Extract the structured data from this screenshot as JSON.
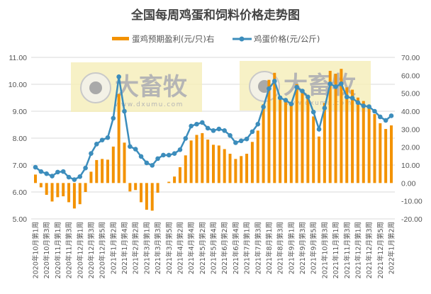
{
  "chart_data": {
    "type": "bar+line",
    "title": "全国每周鸡蛋和饲料价格走势图",
    "legend_position": "top",
    "grid": true,
    "watermark": {
      "logo_text": "大畜牧",
      "url_text": "www.dxumu.com"
    },
    "y_left": {
      "range": [
        5,
        11
      ],
      "ticks": [
        "5.00",
        "6.00",
        "7.00",
        "8.00",
        "9.00",
        "10.00",
        "11.00"
      ]
    },
    "y_right": {
      "range": [
        -20,
        70
      ],
      "ticks": [
        "-20.00",
        "-10.00",
        "0.00",
        "10.00",
        "20.00",
        "30.00",
        "40.00",
        "50.00",
        "60.00",
        "70.00"
      ]
    },
    "x_tick_labels": [
      "2020年10月第1周",
      "2020年10月第3周",
      "2020年11月第1周",
      "2020年11月第3周",
      "2020年12月第1周",
      "2020年12月第3周",
      "2020年12月第5周",
      "2021年1月第2周",
      "2021年1月第4周",
      "2021年2月第2周",
      "2021年3月第1周",
      "2021年3月第3周",
      "2021年3月第5周",
      "2021年4月第2周",
      "2021年4月第4周",
      "2021年5月第2周",
      "2021年5月第4周",
      "2021年6月第2周",
      "2021年6月第4周",
      "2021年7月第1周",
      "2021年7月第3周",
      "2021年8月第1周",
      "2021年8月第3周",
      "2021年9月第1周",
      "2021年9月第3周",
      "2021年9月第5周",
      "2021年10月第3周",
      "2021年11月第1周",
      "2021年11月第3周",
      "2021年12月第1周",
      "2021年12月第3周",
      "2021年12月第5周",
      "2022年1月第2周"
    ],
    "series": [
      {
        "name": "蛋鸡预期盈利(元/只)右",
        "type": "bar",
        "axis": "right",
        "color": "#F39200",
        "values": [
          4.7,
          -2.4,
          -6.6,
          -10.3,
          -7.9,
          -7.4,
          -10.7,
          -14.2,
          -11.8,
          -5.0,
          6.3,
          12.8,
          13.4,
          13.0,
          20.3,
          49.6,
          22.5,
          -4.7,
          -3.9,
          -10.7,
          -14.9,
          -15.4,
          -5.4,
          0,
          0.7,
          3.6,
          8.8,
          15.4,
          23.7,
          26.8,
          27.8,
          24.2,
          21.3,
          20.9,
          18.9,
          16.3,
          13.4,
          15.0,
          16.3,
          22.9,
          29.2,
          43.9,
          57.5,
          61.4,
          47.0,
          45.0,
          43.3,
          55.1,
          50.9,
          48.9,
          37.1,
          25.9,
          44.6,
          62.5,
          60.9,
          63.6,
          53.3,
          52.0,
          47.6,
          45.7,
          43.7,
          38.4,
          33.3,
          30.1,
          32.1
        ]
      },
      {
        "name": "鸡蛋价格(元/公斤)",
        "type": "line",
        "axis": "left",
        "color": "#3C8DBC",
        "values": [
          6.92,
          6.76,
          6.68,
          6.59,
          6.74,
          6.76,
          6.55,
          6.46,
          6.57,
          6.89,
          7.43,
          7.78,
          7.93,
          8.02,
          8.74,
          10.28,
          9.0,
          7.69,
          7.59,
          7.32,
          7.08,
          6.99,
          7.24,
          7.37,
          7.37,
          7.43,
          7.57,
          7.99,
          8.45,
          8.52,
          8.58,
          8.37,
          8.28,
          8.34,
          8.28,
          8.1,
          7.83,
          7.9,
          7.97,
          8.24,
          8.52,
          9.16,
          9.84,
          10.12,
          9.5,
          9.41,
          9.27,
          9.89,
          9.75,
          9.53,
          8.97,
          8.33,
          9.12,
          10.02,
          9.91,
          10.02,
          9.53,
          9.49,
          9.32,
          9.2,
          9.17,
          9.0,
          8.79,
          8.66,
          8.83
        ]
      }
    ]
  }
}
